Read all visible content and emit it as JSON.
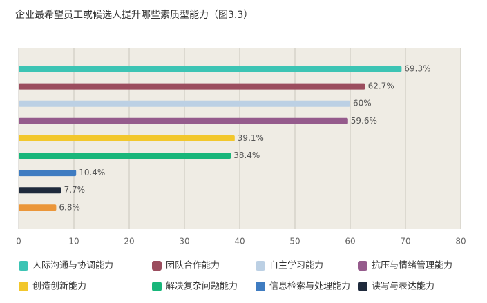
{
  "chart_data": {
    "type": "hbar",
    "title": "企业最希望员工或候选人提升哪些素质型能力（图3.3）",
    "categories": [
      "人际沟通与协调能力",
      "团队合作能力",
      "自主学习能力",
      "抗压与情绪管理能力",
      "创造创新能力",
      "解决复杂问题能力",
      "信息检索与处理能力",
      "读写与表达能力",
      null
    ],
    "values": [
      69.3,
      62.7,
      60,
      59.6,
      39.1,
      38.4,
      10.4,
      7.7,
      6.8
    ],
    "value_labels": [
      "69.3%",
      "62.7%",
      "60%",
      "59.6%",
      "39.1%",
      "38.4%",
      "10.4%",
      "7.7%",
      "6.8%"
    ],
    "colors": [
      "#3cc4b4",
      "#9b4d5e",
      "#bcd0e4",
      "#955b8c",
      "#f2c72c",
      "#18b67a",
      "#3f7cc1",
      "#1f2a3c",
      "#eb963a"
    ],
    "xlim": [
      0,
      80
    ],
    "xticks": [
      0,
      10,
      20,
      30,
      40,
      50,
      60,
      70,
      80
    ],
    "grid": true
  }
}
